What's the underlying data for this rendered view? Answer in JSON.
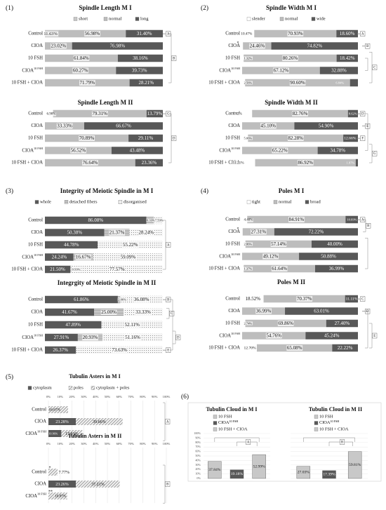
{
  "panel_numbers": [
    "(1)",
    "(2)",
    "(3)",
    "(4)",
    "(5)",
    "(6)"
  ],
  "group_labels": [
    "Control",
    "CIOA",
    "10 FSH",
    "CIOA 10 FSH",
    "10 FSH + CIOA"
  ],
  "colors": {
    "light": "#c8c8c8",
    "dark": "#585858",
    "hatch": "#8c8c8c",
    "dots": "#8c8c8c",
    "bracket": "#888888"
  },
  "chart_data": [
    {
      "type": "bar",
      "stacked": true,
      "orientation": "horizontal",
      "panel": "(1)",
      "title": "Spindle Length M I",
      "legend": [
        "short",
        "normal",
        "long"
      ],
      "categories": [
        "Control",
        "CIOA",
        "10 FSH",
        "CIOA 10 FSH",
        "10 FSH + CIOA"
      ],
      "series": [
        {
          "name": "short",
          "values": [
            11.63,
            0,
            0,
            0,
            0
          ],
          "labels": [
            "11.63%",
            "",
            "",
            "",
            ""
          ]
        },
        {
          "name": "normal",
          "values": [
            56.98,
            23.02,
            61.84,
            60.27,
            71.79
          ],
          "labels": [
            "56.98%",
            "23.02%",
            "61.84%",
            "60.27%",
            "71.79%"
          ]
        },
        {
          "name": "long",
          "values": [
            31.4,
            76.98,
            38.16,
            39.73,
            28.21
          ],
          "labels": [
            "31.40%",
            "76.98%",
            "38.16%",
            "39.73%",
            "28.21%"
          ]
        }
      ],
      "significance": [
        "A",
        "B"
      ]
    },
    {
      "type": "bar",
      "stacked": true,
      "orientation": "horizontal",
      "panel": "(1)",
      "title": "Spindle Length M II",
      "categories": [
        "Control",
        "CIOA",
        "10 FSH",
        "CIOA 10 FSH",
        "10 FSH + CIOA"
      ],
      "series": [
        {
          "name": "short",
          "values": [
            6.9,
            0,
            0,
            0,
            0
          ],
          "labels": [
            "6.90%",
            "",
            "",
            "",
            ""
          ]
        },
        {
          "name": "normal",
          "values": [
            79.31,
            33.33,
            70.89,
            56.52,
            76.64
          ],
          "labels": [
            "79.31%",
            "33.33%",
            "70.89%",
            "56.52%",
            "76.64%"
          ]
        },
        {
          "name": "long",
          "values": [
            13.79,
            66.67,
            29.11,
            43.48,
            23.36
          ],
          "labels": [
            "13.79%",
            "66.67%",
            "29.11%",
            "43.48%",
            "23.36%"
          ]
        }
      ],
      "significance": [
        "C",
        "D"
      ]
    },
    {
      "type": "bar",
      "stacked": true,
      "orientation": "horizontal",
      "panel": "(2)",
      "title": "Spindle Width M I",
      "legend": [
        "slender",
        "normal",
        "wide"
      ],
      "categories": [
        "Control",
        "CIOA",
        "10 FSH",
        "CIOA 10 FSH",
        "10 FSH + CIOA"
      ],
      "series": [
        {
          "name": "slender",
          "values": [
            10.47,
            0.72,
            1.32,
            0,
            2.56
          ],
          "labels": [
            "10.47%",
            "",
            "1.32%",
            "",
            "2.56%"
          ]
        },
        {
          "name": "normal",
          "values": [
            70.93,
            24.46,
            80.26,
            67.12,
            90.6
          ],
          "labels": [
            "70.93%",
            "24.46%",
            "80.26%",
            "67.12%",
            "90.60%"
          ]
        },
        {
          "name": "wide",
          "values": [
            18.6,
            74.82,
            18.42,
            32.88,
            6.84
          ],
          "labels": [
            "18.60%",
            "74.82%",
            "18.42%",
            "32.88%",
            "6.84%"
          ]
        }
      ],
      "significance": [
        "A",
        "B",
        "C"
      ]
    },
    {
      "type": "bar",
      "stacked": true,
      "orientation": "horizontal",
      "panel": "(2)",
      "title": "Spindle Width M II",
      "categories": [
        "Control",
        "CIOA",
        "10 FSH",
        "CIOA 10 FSH",
        "10 FSH + CIOA"
      ],
      "series": [
        {
          "name": "slender",
          "values": [
            8.62,
            0,
            5.06,
            0,
            11.21
          ],
          "labels": [
            "8.62%",
            "",
            "5.06%",
            "",
            "11.21%"
          ]
        },
        {
          "name": "normal",
          "values": [
            82.76,
            45.1,
            82.28,
            65.22,
            86.92
          ],
          "labels": [
            "82.76%",
            "45.10%",
            "82.28%",
            "65.22%",
            "86.92%"
          ]
        },
        {
          "name": "wide",
          "values": [
            8.62,
            54.9,
            12.66,
            34.78,
            1.87
          ],
          "labels": [
            "8.62%",
            "54.90%",
            "12.66%",
            "34.78%",
            "1.87%"
          ]
        }
      ],
      "significance": [
        "D",
        "E",
        "F",
        "G"
      ]
    },
    {
      "type": "bar",
      "stacked": true,
      "orientation": "horizontal",
      "panel": "(3)",
      "title": "Integrity of Meiotic Spindle in M I",
      "legend": [
        "whole",
        "detached fibers",
        "disorganised"
      ],
      "categories": [
        "Control",
        "CIOA",
        "10 FSH",
        "CIOA 10 FSH",
        "10 FSH + CIOA"
      ],
      "series": [
        {
          "name": "whole",
          "values": [
            86.08,
            50.38,
            44.78,
            24.24,
            21.5
          ],
          "labels": [
            "86.08%",
            "50.38%",
            "44.78%",
            "24.24%",
            "21.50%"
          ]
        },
        {
          "name": "detached fibers",
          "values": [
            6.33,
            21.37,
            0,
            16.67,
            0.93
          ],
          "labels": [
            "6.33%",
            "21.37%",
            "",
            "16.67%",
            "0.93%"
          ]
        },
        {
          "name": "disorganised",
          "values": [
            7.59,
            28.24,
            55.22,
            59.09,
            77.57
          ],
          "labels": [
            "7.59%",
            "28.24%",
            "55.22%",
            "59.09%",
            "77.57%"
          ]
        }
      ],
      "significance": [
        "A"
      ]
    },
    {
      "type": "bar",
      "stacked": true,
      "orientation": "horizontal",
      "panel": "(3)",
      "title": "Integrgity of Meiotic Spindle in M II",
      "categories": [
        "Control",
        "CIOA",
        "10 FSH",
        "CIOA 10 FSH",
        "10 FSH + CIOA"
      ],
      "series": [
        {
          "name": "whole",
          "values": [
            61.86,
            41.67,
            47.89,
            27.91,
            26.37
          ],
          "labels": [
            "61.86%",
            "41.67%",
            "47.89%",
            "27.91%",
            "26.37%"
          ]
        },
        {
          "name": "detached fibers",
          "values": [
            2.06,
            25.0,
            0,
            20.93,
            0
          ],
          "labels": [
            "2.06%",
            "25.00%",
            "",
            "20.93%",
            ""
          ]
        },
        {
          "name": "disorganised",
          "values": [
            36.08,
            33.33,
            52.11,
            51.16,
            73.63
          ],
          "labels": [
            "36.08%",
            "33.33%",
            "52.11%",
            "51.16%",
            "73.63%"
          ]
        }
      ],
      "significance": [
        "B",
        "C",
        "D",
        "E"
      ]
    },
    {
      "type": "bar",
      "stacked": true,
      "orientation": "horizontal",
      "panel": "(4)",
      "title": "Poles M I",
      "legend": [
        "tight",
        "normal",
        "broad"
      ],
      "categories": [
        "Control",
        "CIOA",
        "10 FSH",
        "CIOA 10 FSH",
        "10 FSH + CIOA"
      ],
      "series": [
        {
          "name": "tight",
          "values": [
            4.4,
            0.47,
            2.86,
            0,
            1.37
          ],
          "labels": [
            "4.40%",
            "",
            "2.86%",
            "",
            "1.37%"
          ]
        },
        {
          "name": "normal",
          "values": [
            84.91,
            27.31,
            57.14,
            49.12,
            61.64
          ],
          "labels": [
            "84.91%",
            "27.31%",
            "57.14%",
            "49.12%",
            "61.64%"
          ]
        },
        {
          "name": "broad",
          "values": [
            10.69,
            72.22,
            40.0,
            50.88,
            36.99
          ],
          "labels": [
            "10.69%",
            "72.22%",
            "40.00%",
            "50.88%",
            "36.99%"
          ]
        }
      ],
      "significance": [
        "A",
        "B"
      ]
    },
    {
      "type": "bar",
      "stacked": true,
      "orientation": "horizontal",
      "panel": "(4)",
      "title": "Poles M II",
      "categories": [
        "Control",
        "CIOA",
        "10 FSH",
        "CIOA 10 FSH",
        "10 FSH + CIOA"
      ],
      "series": [
        {
          "name": "tight",
          "values": [
            18.52,
            0,
            2.74,
            0,
            12.7
          ],
          "labels": [
            "18.52%",
            "",
            "2.74%",
            "",
            "12.70%"
          ]
        },
        {
          "name": "normal",
          "values": [
            70.37,
            36.99,
            69.86,
            54.76,
            65.08
          ],
          "labels": [
            "70.37%",
            "36.99%",
            "69.86%",
            "54.76%",
            "65.08%"
          ]
        },
        {
          "name": "broad",
          "values": [
            11.11,
            63.01,
            27.4,
            45.24,
            22.22
          ],
          "labels": [
            "11.11%",
            "63.01%",
            "27.40%",
            "45.24%",
            "22.22%"
          ]
        }
      ],
      "significance": [
        "C",
        "D",
        "E"
      ]
    },
    {
      "type": "bar",
      "stacked": true,
      "orientation": "horizontal",
      "panel": "(5)",
      "title": "Tubulin Asters in M I",
      "legend": [
        "cytoplasm",
        "poles",
        "cytoplasm + poles"
      ],
      "xlim": [
        0,
        100
      ],
      "ticks": [
        "0%",
        "10%",
        "20%",
        "30%",
        "40%",
        "50%",
        "60%",
        "70%",
        "80%",
        "90%",
        "100%"
      ],
      "categories": [
        "Control",
        "CIOA",
        "CIOA 10 FSH"
      ],
      "series": [
        {
          "name": "cytoplasm",
          "values": [
            0,
            23.28,
            10.96
          ],
          "labels": [
            "",
            "23.28%",
            "10.96%"
          ]
        },
        {
          "name": "poles",
          "values": [
            0,
            0,
            17.81
          ],
          "labels": [
            "",
            "",
            "17.81%"
          ]
        },
        {
          "name": "cytoplasm + poles",
          "values": [
            16.67,
            39.66,
            0
          ],
          "labels": [
            "16.67%",
            "39.66%",
            ""
          ]
        }
      ],
      "significance": [
        "A"
      ]
    },
    {
      "type": "bar",
      "stacked": true,
      "orientation": "horizontal",
      "panel": "(5)",
      "title": "Tubulin Asters in M II",
      "xlim": [
        0,
        100
      ],
      "ticks": [
        "0%",
        "10%",
        "20%",
        "30%",
        "40%",
        "50%",
        "60%",
        "70%",
        "80%",
        "90%",
        "100%"
      ],
      "categories": [
        "Control",
        "CIOA",
        "CIOA 10 FSH"
      ],
      "series": [
        {
          "name": "cytoplasm",
          "values": [
            0,
            23.26,
            0
          ],
          "labels": [
            "",
            "23.26%",
            ""
          ]
        },
        {
          "name": "poles",
          "values": [
            0,
            0,
            5.0
          ],
          "labels": [
            "",
            "",
            ""
          ]
        },
        {
          "name": "cytoplasm + poles",
          "values": [
            7.77,
            37.21,
            10.87
          ],
          "labels": [
            "7.77%",
            "37.21%",
            "10.87%"
          ]
        }
      ],
      "significance": [
        "B"
      ]
    },
    {
      "type": "bar",
      "orientation": "vertical",
      "panel": "(6)",
      "title": "Tubulin Cloud in M I",
      "legend": [
        "10 FSH",
        "CIOA 10 FSH",
        "10 FSH + CIOA"
      ],
      "ylim": [
        0,
        100
      ],
      "ticks": [
        "0%",
        "10%",
        "20%",
        "30%",
        "40%",
        "50%",
        "60%",
        "70%",
        "80%",
        "90%",
        "100%"
      ],
      "categories": [
        "10 FSH",
        "CIOA 10 FSH",
        "10 FSH + CIOA"
      ],
      "values": [
        37.84,
        19.18,
        52.99
      ],
      "labels": [
        "37.84%",
        "19.18%",
        "52.99%"
      ],
      "significance": [
        "A"
      ]
    },
    {
      "type": "bar",
      "orientation": "vertical",
      "panel": "(6)",
      "title": "Tubulin Cloud in M II",
      "legend": [
        "10 FSH",
        "CIOA 10 FSH",
        "10 FSH + CIOA"
      ],
      "ylim": [
        0,
        100
      ],
      "categories": [
        "10 FSH",
        "CIOA 10 FSH",
        "10 FSH + CIOA"
      ],
      "values": [
        27.03,
        17.39,
        59.81
      ],
      "labels": [
        "27.03%",
        "17.39%",
        "59.81%"
      ],
      "significance": [
        "B"
      ]
    }
  ]
}
